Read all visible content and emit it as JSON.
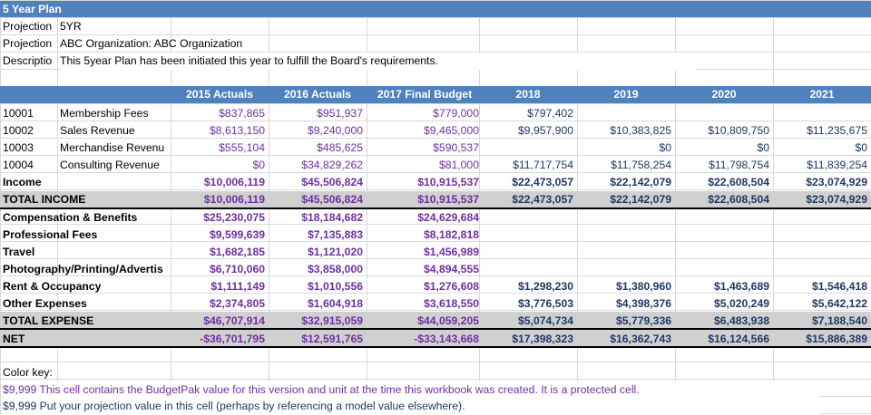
{
  "sheet": {
    "title": "5 Year Plan",
    "info": [
      {
        "label": "Projection",
        "value": "5YR"
      },
      {
        "label": "Projection",
        "value": "ABC Organization: ABC Organization"
      },
      {
        "label": "Descriptio",
        "value": "This 5year Plan has been initiated this year to fulfill the Board's requirements."
      }
    ],
    "columns": [
      "2015 Actuals",
      "2016 Actuals",
      "2017 Final Budget",
      "2018",
      "2019",
      "2020",
      "2021"
    ],
    "rows": [
      {
        "code": "10001",
        "name": "Membership Fees",
        "vals": [
          "$837,865",
          "$951,937",
          "$779,000",
          "$797,402",
          "",
          "",
          ""
        ]
      },
      {
        "code": "10002",
        "name": "Sales Revenue",
        "vals": [
          "$8,613,150",
          "$9,240,000",
          "$9,465,000",
          "$9,957,900",
          "$10,383,825",
          "$10,809,750",
          "$11,235,675"
        ]
      },
      {
        "code": "10003",
        "name": "Merchandise Revenu",
        "vals": [
          "$555,104",
          "$485,625",
          "$590,537",
          "",
          "$0",
          "$0",
          "$0"
        ]
      },
      {
        "code": "10004",
        "name": "Consulting Revenue",
        "vals": [
          "$0",
          "$34,829,262",
          "$81,000",
          "$11,717,754",
          "$11,758,254",
          "$11,798,754",
          "$11,839,254"
        ]
      },
      {
        "code": "Income",
        "name": "",
        "vals": [
          "$10,006,119",
          "$45,506,824",
          "$10,915,537",
          "$22,473,057",
          "$22,142,079",
          "$22,608,504",
          "$23,074,929"
        ]
      },
      {
        "code": "TOTAL INCOME",
        "name": "",
        "vals": [
          "$10,006,119",
          "$45,506,824",
          "$10,915,537",
          "$22,473,057",
          "$22,142,079",
          "$22,608,504",
          "$23,074,929"
        ]
      },
      {
        "code": "Compensation & Benefits",
        "name": "",
        "vals": [
          "$25,230,075",
          "$18,184,682",
          "$24,629,684",
          "",
          "",
          "",
          ""
        ]
      },
      {
        "code": "Professional Fees",
        "name": "",
        "vals": [
          "$9,599,639",
          "$7,135,883",
          "$8,182,818",
          "",
          "",
          "",
          ""
        ]
      },
      {
        "code": "Travel",
        "name": "",
        "vals": [
          "$1,682,185",
          "$1,121,020",
          "$1,456,989",
          "",
          "",
          "",
          ""
        ]
      },
      {
        "code": "Photography/Printing/Advertis",
        "name": "",
        "vals": [
          "$6,710,060",
          "$3,858,000",
          "$4,894,555",
          "",
          "",
          "",
          ""
        ]
      },
      {
        "code": "Rent & Occupancy",
        "name": "",
        "vals": [
          "$1,111,149",
          "$1,010,556",
          "$1,276,608",
          "$1,298,230",
          "$1,380,960",
          "$1,463,689",
          "$1,546,418"
        ]
      },
      {
        "code": "Other Expenses",
        "name": "",
        "vals": [
          "$2,374,805",
          "$1,604,918",
          "$3,618,550",
          "$3,776,503",
          "$4,398,376",
          "$5,020,249",
          "$5,642,122"
        ]
      },
      {
        "code": "TOTAL EXPENSE",
        "name": "",
        "vals": [
          "$46,707,914",
          "$32,915,059",
          "$44,059,205",
          "$5,074,734",
          "$5,779,336",
          "$6,483,938",
          "$7,188,540"
        ]
      },
      {
        "code": "NET",
        "name": "",
        "vals": [
          "-$36,701,795",
          "$12,591,765",
          "-$33,143,668",
          "$17,398,323",
          "$16,362,743",
          "$16,124,566",
          "$15,886,389"
        ]
      }
    ],
    "color_key": {
      "label": "Color key:",
      "budgetpak": "$9,999 This cell contains the BudgetPak value for this version and unit at the time this workbook was created.  It is a protected cell.",
      "projection": "$9,999 Put your projection value in this cell (perhaps by referencing a model value elsewhere)."
    },
    "colors": {
      "header_blue": "#4f81bd",
      "budgetpak_plum": "#7030a0",
      "projection_navy": "#1f3864",
      "total_gray": "#d0d0d0"
    }
  }
}
